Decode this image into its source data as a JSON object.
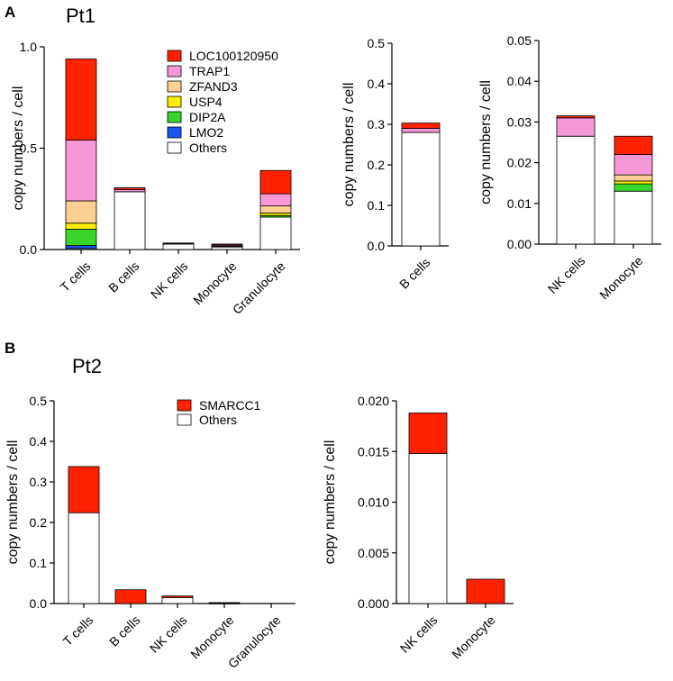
{
  "figure": {
    "panels": [
      {
        "letter": "A",
        "title": "Pt1"
      },
      {
        "letter": "B",
        "title": "Pt2"
      }
    ]
  },
  "colors": {
    "LOC100120950": "#ff2200",
    "TRAP1": "#f799d7",
    "ZFAND3": "#fdcf92",
    "USP4": "#ffee00",
    "DIP2A": "#38d62a",
    "LMO2": "#1a55ee",
    "Others": "#ffffff",
    "SMARCC1": "#ff2200"
  },
  "chart_data": [
    {
      "id": "pt1-main",
      "type": "bar",
      "stacked": true,
      "panel": "A",
      "title": "Pt1",
      "ylabel": "copy numbers / cell",
      "ylim": [
        0,
        1.0
      ],
      "yticks": [
        "0.0",
        "0.5",
        "1.0"
      ],
      "categories": [
        "T cells",
        "B cells",
        "NK cells",
        "Monocyte",
        "Granulocyte"
      ],
      "legend": [
        "LOC100120950",
        "TRAP1",
        "ZFAND3",
        "USP4",
        "DIP2A",
        "LMO2",
        "Others"
      ],
      "series": [
        {
          "name": "Others",
          "values": [
            0.005,
            0.285,
            0.027,
            0.013,
            0.16
          ]
        },
        {
          "name": "LMO2",
          "values": [
            0.015,
            0,
            0,
            0,
            0
          ]
        },
        {
          "name": "DIP2A",
          "values": [
            0.08,
            0,
            0,
            0.002,
            0.008
          ]
        },
        {
          "name": "USP4",
          "values": [
            0.03,
            0,
            0,
            0.001,
            0.012
          ]
        },
        {
          "name": "ZFAND3",
          "values": [
            0.11,
            0,
            0,
            0.0015,
            0.035
          ]
        },
        {
          "name": "TRAP1",
          "values": [
            0.3,
            0.01,
            0.0045,
            0.005,
            0.06
          ]
        },
        {
          "name": "LOC100120950",
          "values": [
            0.4,
            0.01,
            0.0005,
            0.0045,
            0.115
          ]
        }
      ]
    },
    {
      "id": "pt1-bcells",
      "type": "bar",
      "stacked": true,
      "panel": "A",
      "ylabel": "copy numbers / cell",
      "ylim": [
        0,
        0.5
      ],
      "yticks": [
        "0.0",
        "0.1",
        "0.2",
        "0.3",
        "0.4",
        "0.5"
      ],
      "categories": [
        "B cells"
      ],
      "series": [
        {
          "name": "Others",
          "values": [
            0.28
          ]
        },
        {
          "name": "TRAP1",
          "values": [
            0.01
          ]
        },
        {
          "name": "LOC100120950",
          "values": [
            0.013
          ]
        }
      ]
    },
    {
      "id": "pt1-nk-mono",
      "type": "bar",
      "stacked": true,
      "panel": "A",
      "ylabel": "copy numbers / cell",
      "ylim": [
        0,
        0.05
      ],
      "yticks": [
        "0.00",
        "0.01",
        "0.02",
        "0.03",
        "0.04",
        "0.05"
      ],
      "categories": [
        "NK cells",
        "Monocyte"
      ],
      "series": [
        {
          "name": "Others",
          "values": [
            0.0265,
            0.013
          ]
        },
        {
          "name": "DIP2A",
          "values": [
            0,
            0.0018
          ]
        },
        {
          "name": "USP4",
          "values": [
            0,
            0.0007
          ]
        },
        {
          "name": "ZFAND3",
          "values": [
            0,
            0.0015
          ]
        },
        {
          "name": "TRAP1",
          "values": [
            0.0045,
            0.005
          ]
        },
        {
          "name": "LOC100120950",
          "values": [
            0.0005,
            0.0045
          ]
        }
      ]
    },
    {
      "id": "pt2-main",
      "type": "bar",
      "stacked": true,
      "panel": "B",
      "title": "Pt2",
      "ylabel": "copy numbers / cell",
      "ylim": [
        0,
        0.5
      ],
      "yticks": [
        "0.0",
        "0.1",
        "0.2",
        "0.3",
        "0.4",
        "0.5"
      ],
      "categories": [
        "T cells",
        "B cells",
        "NK cells",
        "Monocyte",
        "Granulocyte"
      ],
      "legend": [
        "SMARCC1",
        "Others"
      ],
      "series": [
        {
          "name": "Others",
          "values": [
            0.224,
            0,
            0.0148,
            0.0005,
            0
          ]
        },
        {
          "name": "SMARCC1",
          "values": [
            0.114,
            0.034,
            0.004,
            0.0018,
            0
          ]
        }
      ]
    },
    {
      "id": "pt2-nk-mono",
      "type": "bar",
      "stacked": true,
      "panel": "B",
      "ylabel": "copy numbers / cell",
      "ylim": [
        0,
        0.02
      ],
      "yticks": [
        "0.000",
        "0.005",
        "0.010",
        "0.015",
        "0.020"
      ],
      "categories": [
        "NK cells",
        "Monocyte"
      ],
      "series": [
        {
          "name": "Others",
          "values": [
            0.0148,
            0
          ]
        },
        {
          "name": "SMARCC1",
          "values": [
            0.004,
            0.0024
          ]
        }
      ]
    }
  ]
}
